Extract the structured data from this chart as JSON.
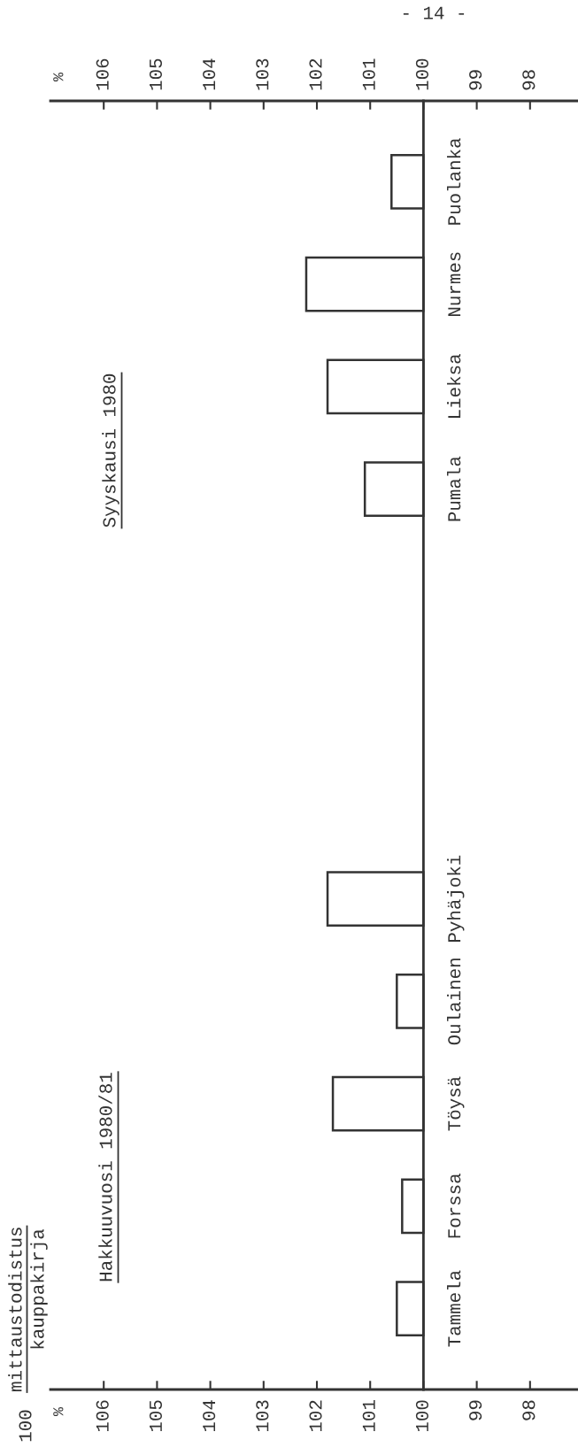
{
  "chart_data": {
    "type": "bar",
    "orientation": "horizontal",
    "categories": [
      "Puolanka",
      "Nurmes",
      "Lieksa",
      "Pumala",
      null,
      null,
      null,
      "Pyhäjoki",
      "Oulainen",
      "Töysä",
      "Forssa",
      "Tammela"
    ],
    "values": [
      0.6,
      2.2,
      1.8,
      1.1,
      null,
      null,
      null,
      1.8,
      0.5,
      1.7,
      0.4,
      0.5
    ],
    "base": [
      100,
      100,
      100,
      100,
      null,
      null,
      null,
      100,
      100,
      100,
      100,
      100
    ],
    "color": "#333333",
    "xlim": [
      107,
      97.1
    ],
    "xticks": [
      106,
      105,
      104,
      103,
      102,
      101,
      100,
      99,
      98
    ],
    "x2lim": [
      107,
      97.1
    ],
    "x2ticks": [
      106,
      105,
      104,
      103,
      102,
      101,
      100,
      99,
      98
    ],
    "grid": false,
    "annotations": [
      "100",
      "mittaustodistus",
      "kauppakirja",
      "Hakkuuvuosi 1980/81",
      "Syyskausi 1980",
      "- 14 -",
      "%",
      "%"
    ]
  }
}
